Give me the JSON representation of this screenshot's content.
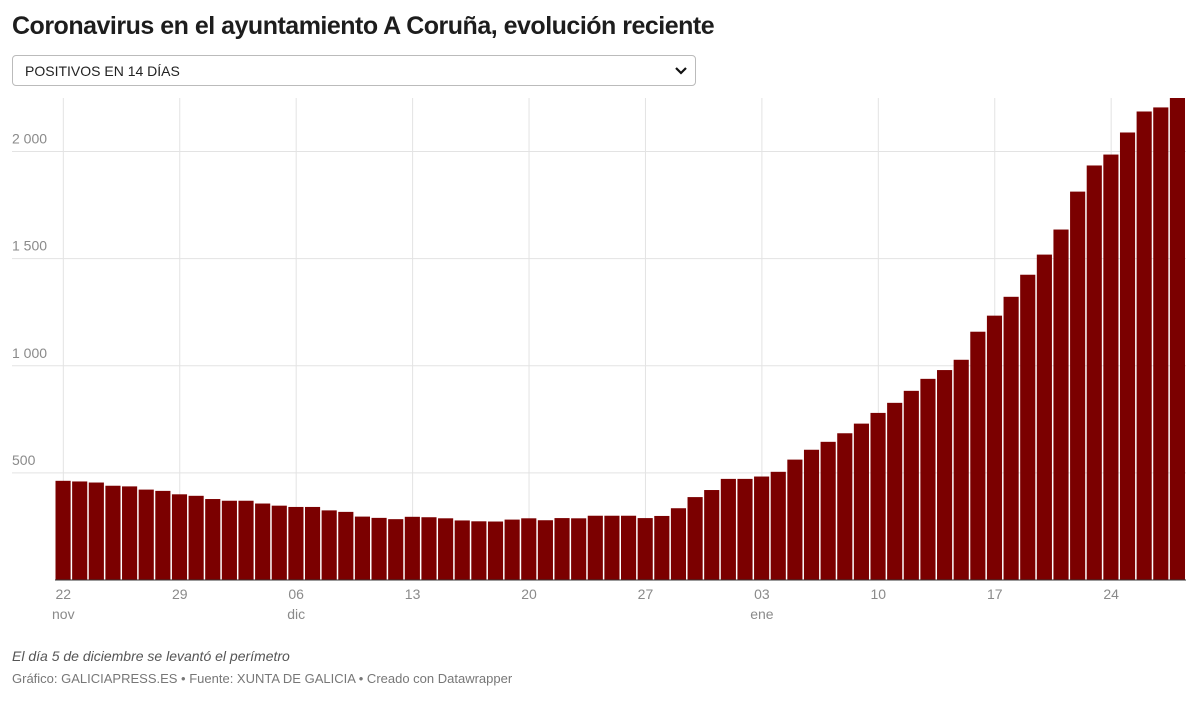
{
  "chart_data": {
    "type": "bar",
    "title": "Coronavirus en el ayuntamiento A Coruña, evolución reciente",
    "dropdown": "POSITIVOS EN 14 DÍAS",
    "note": "El día 5 de diciembre se levantó el perímetro",
    "source": "Gráfico: GALICIAPRESS.ES • Fuente: XUNTA DE GALICIA • Creado con Datawrapper",
    "categories": [
      "22",
      null,
      null,
      null,
      null,
      null,
      null,
      "29",
      null,
      null,
      null,
      null,
      null,
      null,
      "06",
      null,
      null,
      null,
      null,
      null,
      null,
      "13",
      null,
      null,
      null,
      null,
      null,
      null,
      "20",
      null,
      null,
      null,
      null,
      null,
      null,
      "27",
      null,
      null,
      null,
      null,
      null,
      null,
      "03",
      null,
      null,
      null,
      null,
      null,
      null,
      "10",
      null,
      null,
      null,
      null,
      null,
      null,
      "17",
      null,
      null,
      null,
      null,
      null,
      null,
      "24",
      null,
      null,
      null,
      null
    ],
    "category_months": [
      "nov",
      null,
      null,
      null,
      null,
      null,
      null,
      null,
      null,
      null,
      null,
      null,
      null,
      null,
      "dic",
      null,
      null,
      null,
      null,
      null,
      null,
      null,
      null,
      null,
      null,
      null,
      null,
      null,
      null,
      null,
      null,
      null,
      null,
      null,
      null,
      null,
      null,
      null,
      null,
      null,
      null,
      null,
      "ene",
      null,
      null,
      null,
      null,
      null,
      null,
      null,
      null,
      null,
      null,
      null,
      null,
      null,
      null,
      null,
      null,
      null,
      null,
      null,
      null,
      null,
      null,
      null,
      null,
      null
    ],
    "values": [
      463,
      460,
      455,
      440,
      437,
      422,
      416,
      400,
      393,
      378,
      370,
      370,
      357,
      347,
      341,
      341,
      325,
      318,
      296,
      290,
      284,
      295,
      293,
      288,
      278,
      274,
      273,
      282,
      288,
      279,
      289,
      288,
      300,
      300,
      300,
      289,
      299,
      335,
      387,
      420,
      472,
      472,
      483,
      505,
      562,
      608,
      645,
      685,
      730,
      780,
      827,
      883,
      939,
      980,
      1028,
      1159,
      1234,
      1322,
      1425,
      1519,
      1636,
      1813,
      1935,
      1986,
      2089,
      2187,
      2206,
      2250
    ],
    "color": "#7b0000",
    "ylim": [
      0,
      2250
    ],
    "yticks": [
      {
        "value": 500,
        "label": "500"
      },
      {
        "value": 1000,
        "label": "1 000"
      },
      {
        "value": 1500,
        "label": "1 500"
      },
      {
        "value": 2000,
        "label": "2 000"
      }
    ],
    "grid": true
  }
}
